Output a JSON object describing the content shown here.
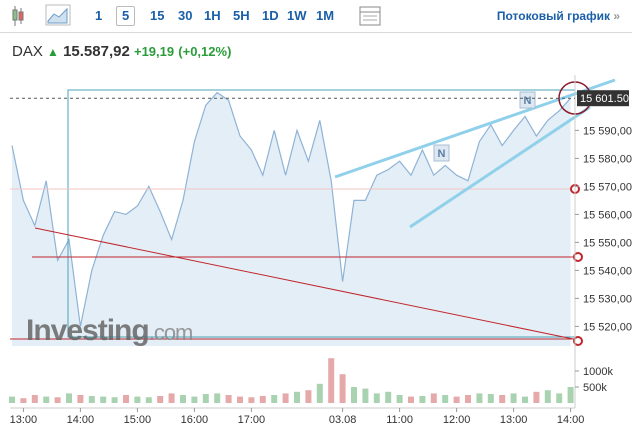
{
  "toolbar": {
    "intervals": [
      "1",
      "5",
      "15",
      "30",
      "1H",
      "5H",
      "1D",
      "1W",
      "1M"
    ],
    "active": "5",
    "stream_link": "Потоковый график",
    "stream_arrow": "»"
  },
  "quote": {
    "symbol": "DAX",
    "price": "15.587,92",
    "change": "+19,19",
    "change_pct": "(+0,12%)"
  },
  "watermark": {
    "brand": "Investing",
    "suffix": ".com"
  },
  "chart_data": {
    "type": "line",
    "categories": [
      null,
      "13:00",
      null,
      null,
      null,
      null,
      "14:00",
      null,
      null,
      null,
      null,
      "15:00",
      null,
      null,
      null,
      null,
      "16:00",
      null,
      null,
      null,
      null,
      "17:00",
      null,
      null,
      null,
      null,
      null,
      null,
      null,
      "03.08",
      null,
      null,
      null,
      null,
      "11:00",
      null,
      null,
      null,
      null,
      "12:00",
      null,
      null,
      null,
      null,
      "13:00",
      null,
      null,
      null,
      null,
      "14:00"
    ],
    "series": [
      {
        "name": "DAX",
        "color": "#8fb3d6",
        "fill": "#e4eef6",
        "values": [
          15584.6,
          15565,
          15556,
          15572,
          15543.6,
          15551,
          15520,
          15540,
          15552.5,
          15561,
          15560,
          15563,
          15570,
          15561,
          15551,
          15565,
          15586,
          15599,
          15603.5,
          15600.7,
          15588,
          15583,
          15574,
          15590,
          15574,
          15590,
          15579,
          15593.6,
          15572,
          15536,
          15565,
          15565,
          15574,
          15576,
          15579,
          15574,
          15583,
          15574,
          15577.5,
          15574,
          15572,
          15586,
          15592,
          15584.6,
          15590,
          15595,
          15588,
          15593.6,
          15597,
          15601.5
        ]
      },
      {
        "name": "Volume",
        "axis": "y2",
        "up_color": "#a9d3b0",
        "down_color": "#e6a9a9",
        "values": [
          200000,
          150000,
          250000,
          200000,
          180000,
          300000,
          250000,
          220000,
          200000,
          180000,
          250000,
          200000,
          180000,
          220000,
          300000,
          250000,
          200000,
          280000,
          300000,
          250000,
          200000,
          180000,
          220000,
          250000,
          300000,
          350000,
          400000,
          600000,
          1400000,
          900000,
          500000,
          450000,
          300000,
          350000,
          250000,
          200000,
          220000,
          300000,
          250000,
          200000,
          250000,
          300000,
          280000,
          250000,
          300000,
          200000,
          350000,
          400000,
          300000,
          500000
        ]
      }
    ],
    "ylim": [
      15513,
      15608
    ],
    "yticks": [
      {
        "value": 15520,
        "label": "15 520,00"
      },
      {
        "value": 15530,
        "label": "15 530,00"
      },
      {
        "value": 15540,
        "label": "15 540,00"
      },
      {
        "value": 15550,
        "label": "15 550,00"
      },
      {
        "value": 15560,
        "label": "15 560,00"
      },
      {
        "value": 15570,
        "label": "15 570,00"
      },
      {
        "value": 15580,
        "label": "15 580,00"
      },
      {
        "value": 15590,
        "label": "15 590,00"
      }
    ],
    "y2lim": [
      0,
      1500000
    ],
    "y2ticks": [
      {
        "value": 500000,
        "label": "500k"
      },
      {
        "value": 1000000,
        "label": "1000k"
      }
    ],
    "last_price": {
      "value": 15601.5,
      "label": "15 601.50"
    }
  }
}
